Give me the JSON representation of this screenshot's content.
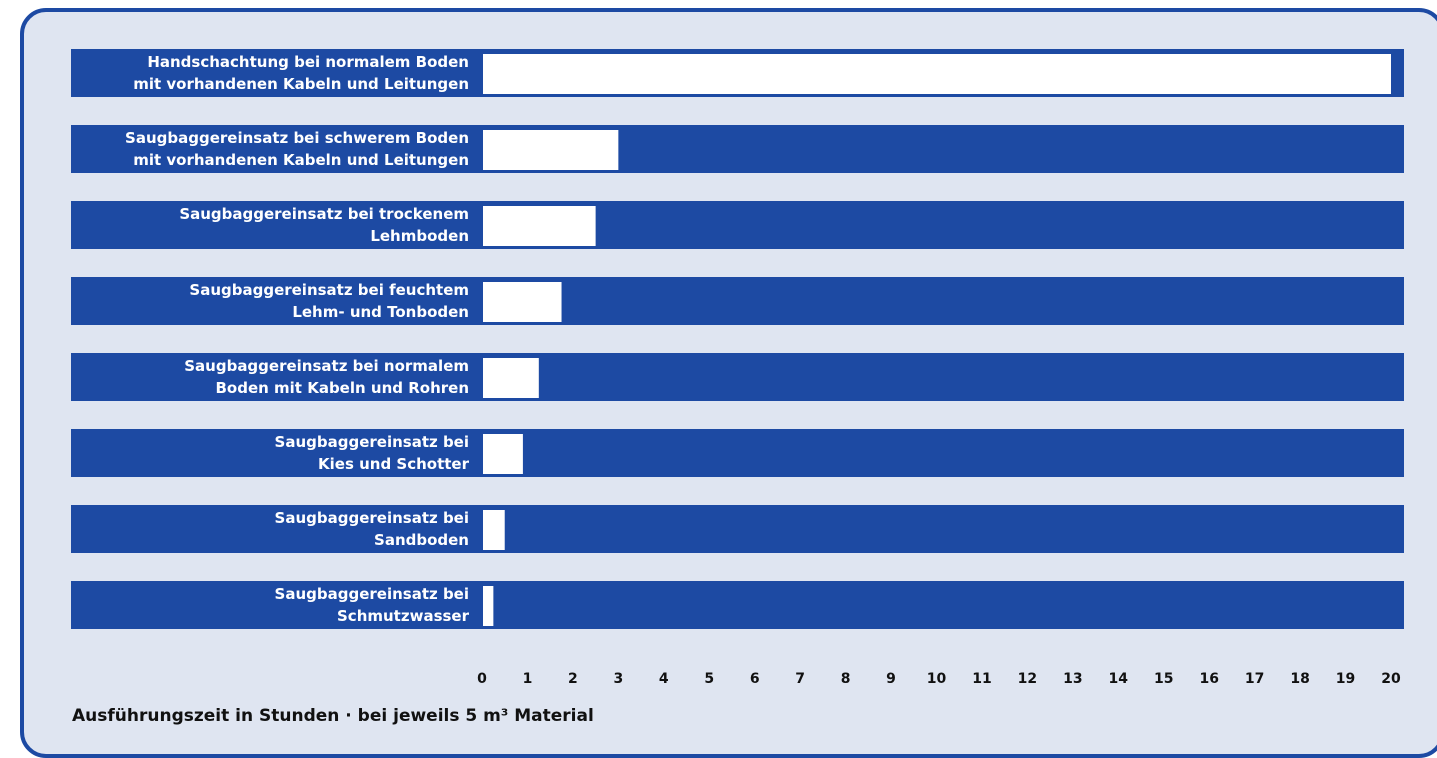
{
  "chart_data": {
    "type": "bar",
    "orientation": "horizontal",
    "categories": [
      [
        "Handschachtung bei normalem Boden",
        "mit vorhandenen Kabeln und Leitungen"
      ],
      [
        "Saugbaggereinsatz bei schwerem Boden",
        "mit vorhandenen Kabeln und Leitungen"
      ],
      [
        "Saugbaggereinsatz bei trockenem",
        "Lehmboden"
      ],
      [
        "Saugbaggereinsatz bei feuchtem",
        "Lehm- und Tonboden"
      ],
      [
        "Saugbaggereinsatz bei normalem",
        "Boden mit Kabeln und Rohren"
      ],
      [
        "Saugbaggereinsatz bei",
        "Kies und Schotter"
      ],
      [
        "Saugbaggereinsatz bei",
        "Sandboden"
      ],
      [
        "Saugbaggereinsatz bei",
        "Schmutzwasser"
      ]
    ],
    "values": [
      20,
      3,
      2.5,
      1.75,
      1.25,
      0.9,
      0.5,
      0.25
    ],
    "xlim": [
      0,
      20
    ],
    "xticks": [
      "0",
      "1",
      "2",
      "3",
      "4",
      "5",
      "6",
      "7",
      "8",
      "9",
      "10",
      "11",
      "12",
      "13",
      "14",
      "15",
      "16",
      "17",
      "18",
      "19",
      "20"
    ],
    "xlabel": "Ausführungszeit in Stunden · bei jeweils 5 m³ Material",
    "title": "",
    "grid": false,
    "colors": {
      "row_background": "#1d4aa3",
      "bar": "#ffffff",
      "panel": "#dfe5f1"
    }
  }
}
